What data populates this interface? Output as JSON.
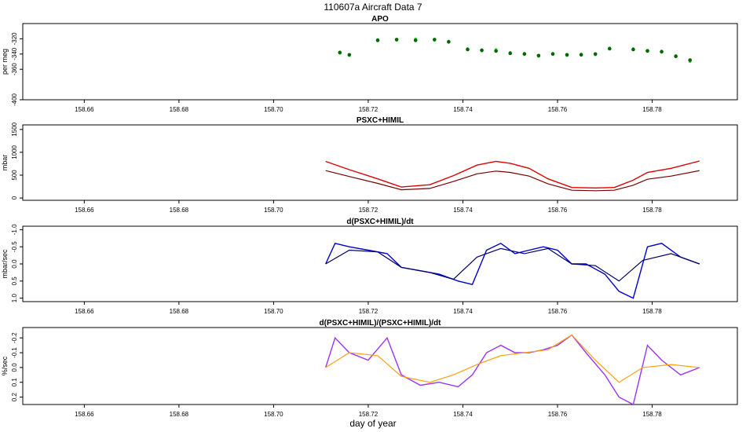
{
  "figure": {
    "title": "110607a   Aircraft Data 7",
    "xlabel": "day of year"
  },
  "chart_data": [
    {
      "type": "scatter",
      "title": "APO",
      "ylabel": "per meg",
      "xlim": [
        158.647,
        158.798
      ],
      "ylim": [
        -400,
        -300
      ],
      "y_reversed": true,
      "xticks": [
        "158.66",
        "158.68",
        "158.70",
        "158.72",
        "158.74",
        "158.76",
        "158.78"
      ],
      "yticks": [
        "-320",
        "-340",
        "-360",
        "-400"
      ],
      "series": [
        {
          "color": "#33ee33",
          "values": {
            "x": [
              158.714,
              158.716,
              158.722,
              158.726,
              158.73,
              158.734,
              158.737,
              158.741,
              158.744,
              158.747,
              158.75,
              158.753,
              158.756,
              158.759,
              158.762,
              158.765,
              158.768,
              158.771,
              158.776,
              158.779,
              158.782,
              158.785,
              158.788
            ],
            "y": [
              -339,
              -342,
              -321,
              -322,
              -320,
              -322,
              -323,
              -333,
              -336,
              -334,
              -338,
              -339,
              -343,
              -339,
              -342,
              -340,
              -341,
              -332,
              -333,
              -335,
              -336,
              -342,
              -350
            ]
          }
        },
        {
          "color": "#006600",
          "values": {
            "x": [
              158.714,
              158.716,
              158.722,
              158.726,
              158.73,
              158.734,
              158.737,
              158.741,
              158.744,
              158.747,
              158.75,
              158.753,
              158.756,
              158.759,
              158.762,
              158.765,
              158.768,
              158.771,
              158.776,
              158.779,
              158.782,
              158.785,
              158.788
            ],
            "y": [
              -338,
              -341,
              -322,
              -321,
              -322,
              -321,
              -324,
              -334,
              -335,
              -336,
              -339,
              -340,
              -342,
              -340,
              -341,
              -341,
              -340,
              -333,
              -334,
              -336,
              -337,
              -343,
              -348
            ]
          }
        }
      ]
    },
    {
      "type": "line",
      "title": "PSXC+HIMIL",
      "ylabel": "mbar",
      "xlim": [
        158.647,
        158.798
      ],
      "ylim": [
        -50,
        1600
      ],
      "yticks": [
        "0",
        "500",
        "1000",
        "1500"
      ],
      "xticks": [
        "158.66",
        "158.68",
        "158.70",
        "158.72",
        "158.74",
        "158.76",
        "158.78"
      ],
      "series": [
        {
          "color": "#dd0000",
          "values": {
            "x": [
              158.711,
              158.716,
              158.722,
              158.727,
              158.733,
              158.738,
              158.743,
              158.747,
              158.75,
              158.754,
              158.758,
              158.763,
              158.768,
              158.772,
              158.776,
              158.779,
              158.784,
              158.79
            ],
            "y": [
              800,
              620,
              420,
              240,
              290,
              490,
              720,
              800,
              760,
              650,
              420,
              230,
              220,
              230,
              390,
              560,
              650,
              810
            ]
          }
        },
        {
          "color": "#770000",
          "values": {
            "x": [
              158.711,
              158.716,
              158.722,
              158.727,
              158.733,
              158.738,
              158.743,
              158.747,
              158.75,
              158.754,
              158.758,
              158.763,
              158.768,
              158.772,
              158.776,
              158.779,
              158.784,
              158.79
            ],
            "y": [
              600,
              470,
              320,
              180,
              210,
              360,
              530,
              590,
              560,
              480,
              310,
              170,
              160,
              170,
              280,
              410,
              480,
              600
            ]
          }
        }
      ]
    },
    {
      "type": "line",
      "title": "d(PSXC+HIMIL)/dt",
      "ylabel": "mbar/sec",
      "xlim": [
        158.647,
        158.798
      ],
      "ylim": [
        1.1,
        -1.1
      ],
      "y_reversed": true,
      "yticks": [
        "-1.0",
        "-0.5",
        "0.0",
        "0.5",
        "1.0"
      ],
      "xticks": [
        "158.66",
        "158.68",
        "158.70",
        "158.72",
        "158.74",
        "158.76",
        "158.78"
      ],
      "series": [
        {
          "color": "#0000cc",
          "values": {
            "x": [
              158.711,
              158.713,
              158.716,
              158.72,
              158.724,
              158.727,
              158.731,
              158.735,
              158.739,
              158.742,
              158.745,
              158.748,
              158.751,
              158.754,
              158.757,
              158.76,
              158.763,
              158.766,
              158.77,
              158.773,
              158.776,
              158.779,
              158.782,
              158.786,
              158.79
            ],
            "y": [
              0.0,
              -0.6,
              -0.5,
              -0.4,
              -0.3,
              0.1,
              0.2,
              0.3,
              0.5,
              0.6,
              -0.4,
              -0.6,
              -0.3,
              -0.4,
              -0.5,
              -0.4,
              0.0,
              0.0,
              0.3,
              0.8,
              1.0,
              -0.5,
              -0.6,
              -0.2,
              0.0
            ]
          }
        },
        {
          "color": "#000066",
          "values": {
            "x": [
              158.711,
              158.716,
              158.722,
              158.727,
              158.733,
              158.738,
              158.743,
              158.748,
              158.753,
              158.758,
              158.763,
              158.768,
              158.773,
              158.778,
              158.784,
              158.79
            ],
            "y": [
              0.0,
              -0.4,
              -0.35,
              0.1,
              0.25,
              0.45,
              -0.2,
              -0.45,
              -0.3,
              -0.45,
              0.0,
              0.05,
              0.5,
              -0.1,
              -0.3,
              0.0
            ]
          }
        }
      ]
    },
    {
      "type": "line",
      "title": "d(PSXC+HIMIL)/(PSXC+HIMIL)/dt",
      "ylabel": "%/sec",
      "xlim": [
        158.647,
        158.798
      ],
      "ylim": [
        0.25,
        -0.27
      ],
      "y_reversed": true,
      "yticks": [
        "-0.2",
        "-0.1",
        "0.0",
        "0.1",
        "0.2"
      ],
      "xticks": [
        "158.66",
        "158.68",
        "158.70",
        "158.72",
        "158.74",
        "158.76",
        "158.78"
      ],
      "series": [
        {
          "color": "#9933ff",
          "values": {
            "x": [
              158.711,
              158.713,
              158.716,
              158.72,
              158.724,
              158.727,
              158.731,
              158.735,
              158.739,
              158.742,
              158.745,
              158.748,
              158.751,
              158.754,
              158.757,
              158.76,
              158.763,
              158.766,
              158.77,
              158.773,
              158.776,
              158.779,
              158.782,
              158.786,
              158.79
            ],
            "y": [
              0.0,
              -0.2,
              -0.1,
              -0.05,
              -0.2,
              0.05,
              0.12,
              0.1,
              0.13,
              0.05,
              -0.1,
              -0.15,
              -0.1,
              -0.1,
              -0.12,
              -0.15,
              -0.22,
              -0.1,
              0.05,
              0.2,
              0.25,
              -0.15,
              -0.05,
              0.05,
              0.0
            ]
          }
        },
        {
          "color": "#ffa010",
          "values": {
            "x": [
              158.711,
              158.716,
              158.722,
              158.727,
              158.733,
              158.738,
              158.743,
              158.748,
              158.753,
              158.758,
              158.763,
              158.768,
              158.773,
              158.778,
              158.784,
              158.79
            ],
            "y": [
              0.0,
              -0.1,
              -0.08,
              0.06,
              0.1,
              0.05,
              -0.02,
              -0.08,
              -0.1,
              -0.12,
              -0.22,
              -0.05,
              0.1,
              0.0,
              -0.02,
              0.0
            ]
          }
        }
      ]
    }
  ]
}
